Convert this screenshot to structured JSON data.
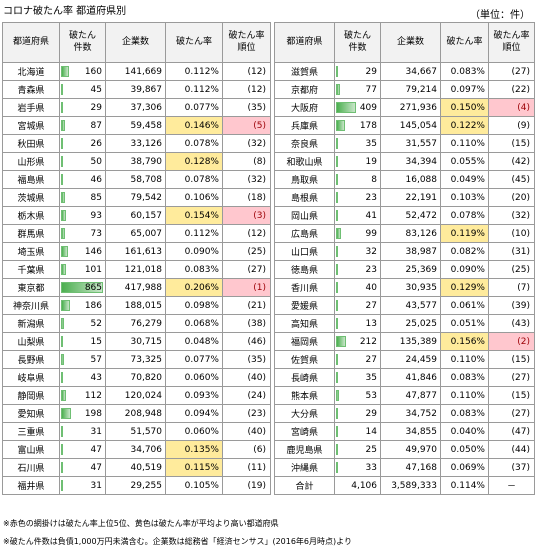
{
  "title": "コロナ破たん率 都道府県別",
  "unit": "（単位：件）",
  "headers": {
    "pref": "都道府県",
    "count_line1": "破たん",
    "count_line2": "件数",
    "companies": "企業数",
    "rate": "破たん率",
    "rank_line1": "破たん率",
    "rank_line2": "順位"
  },
  "max_count": 865,
  "left_rows": [
    {
      "pref": "北海道",
      "count": "160",
      "companies": "141,669",
      "rate": "0.112%",
      "rank": "(12)",
      "hl": ""
    },
    {
      "pref": "青森県",
      "count": "45",
      "companies": "39,867",
      "rate": "0.112%",
      "rank": "(12)",
      "hl": ""
    },
    {
      "pref": "岩手県",
      "count": "29",
      "companies": "37,306",
      "rate": "0.077%",
      "rank": "(35)",
      "hl": ""
    },
    {
      "pref": "宮城県",
      "count": "87",
      "companies": "59,458",
      "rate": "0.146%",
      "rank": "(5)",
      "hl": "top5"
    },
    {
      "pref": "秋田県",
      "count": "26",
      "companies": "33,126",
      "rate": "0.078%",
      "rank": "(32)",
      "hl": ""
    },
    {
      "pref": "山形県",
      "count": "50",
      "companies": "38,790",
      "rate": "0.128%",
      "rank": "(8)",
      "hl": "above"
    },
    {
      "pref": "福島県",
      "count": "46",
      "companies": "58,708",
      "rate": "0.078%",
      "rank": "(32)",
      "hl": ""
    },
    {
      "pref": "茨城県",
      "count": "85",
      "companies": "79,542",
      "rate": "0.106%",
      "rank": "(18)",
      "hl": ""
    },
    {
      "pref": "栃木県",
      "count": "93",
      "companies": "60,157",
      "rate": "0.154%",
      "rank": "(3)",
      "hl": "top5"
    },
    {
      "pref": "群馬県",
      "count": "73",
      "companies": "65,007",
      "rate": "0.112%",
      "rank": "(12)",
      "hl": ""
    },
    {
      "pref": "埼玉県",
      "count": "146",
      "companies": "161,613",
      "rate": "0.090%",
      "rank": "(25)",
      "hl": ""
    },
    {
      "pref": "千葉県",
      "count": "101",
      "companies": "121,018",
      "rate": "0.083%",
      "rank": "(27)",
      "hl": ""
    },
    {
      "pref": "東京都",
      "count": "865",
      "companies": "417,988",
      "rate": "0.206%",
      "rank": "(1)",
      "hl": "top5"
    },
    {
      "pref": "神奈川県",
      "count": "186",
      "companies": "188,015",
      "rate": "0.098%",
      "rank": "(21)",
      "hl": ""
    },
    {
      "pref": "新潟県",
      "count": "52",
      "companies": "76,279",
      "rate": "0.068%",
      "rank": "(38)",
      "hl": ""
    },
    {
      "pref": "山梨県",
      "count": "15",
      "companies": "30,715",
      "rate": "0.048%",
      "rank": "(46)",
      "hl": ""
    },
    {
      "pref": "長野県",
      "count": "57",
      "companies": "73,325",
      "rate": "0.077%",
      "rank": "(35)",
      "hl": ""
    },
    {
      "pref": "岐阜県",
      "count": "43",
      "companies": "70,820",
      "rate": "0.060%",
      "rank": "(40)",
      "hl": ""
    },
    {
      "pref": "静岡県",
      "count": "112",
      "companies": "120,024",
      "rate": "0.093%",
      "rank": "(24)",
      "hl": ""
    },
    {
      "pref": "愛知県",
      "count": "198",
      "companies": "208,948",
      "rate": "0.094%",
      "rank": "(23)",
      "hl": ""
    },
    {
      "pref": "三重県",
      "count": "31",
      "companies": "51,570",
      "rate": "0.060%",
      "rank": "(40)",
      "hl": ""
    },
    {
      "pref": "富山県",
      "count": "47",
      "companies": "34,706",
      "rate": "0.135%",
      "rank": "(6)",
      "hl": "above"
    },
    {
      "pref": "石川県",
      "count": "47",
      "companies": "40,519",
      "rate": "0.115%",
      "rank": "(11)",
      "hl": "above"
    },
    {
      "pref": "福井県",
      "count": "31",
      "companies": "29,255",
      "rate": "0.105%",
      "rank": "(19)",
      "hl": ""
    }
  ],
  "right_rows": [
    {
      "pref": "滋賀県",
      "count": "29",
      "companies": "34,667",
      "rate": "0.083%",
      "rank": "(27)",
      "hl": ""
    },
    {
      "pref": "京都府",
      "count": "77",
      "companies": "79,214",
      "rate": "0.097%",
      "rank": "(22)",
      "hl": ""
    },
    {
      "pref": "大阪府",
      "count": "409",
      "companies": "271,936",
      "rate": "0.150%",
      "rank": "(4)",
      "hl": "top5"
    },
    {
      "pref": "兵庫県",
      "count": "178",
      "companies": "145,054",
      "rate": "0.122%",
      "rank": "(9)",
      "hl": "above"
    },
    {
      "pref": "奈良県",
      "count": "35",
      "companies": "31,557",
      "rate": "0.110%",
      "rank": "(15)",
      "hl": ""
    },
    {
      "pref": "和歌山県",
      "count": "19",
      "companies": "34,394",
      "rate": "0.055%",
      "rank": "(42)",
      "hl": ""
    },
    {
      "pref": "鳥取県",
      "count": "8",
      "companies": "16,088",
      "rate": "0.049%",
      "rank": "(45)",
      "hl": ""
    },
    {
      "pref": "島根県",
      "count": "23",
      "companies": "22,191",
      "rate": "0.103%",
      "rank": "(20)",
      "hl": ""
    },
    {
      "pref": "岡山県",
      "count": "41",
      "companies": "52,472",
      "rate": "0.078%",
      "rank": "(32)",
      "hl": ""
    },
    {
      "pref": "広島県",
      "count": "99",
      "companies": "83,126",
      "rate": "0.119%",
      "rank": "(10)",
      "hl": "above"
    },
    {
      "pref": "山口県",
      "count": "32",
      "companies": "38,987",
      "rate": "0.082%",
      "rank": "(31)",
      "hl": ""
    },
    {
      "pref": "徳島県",
      "count": "23",
      "companies": "25,369",
      "rate": "0.090%",
      "rank": "(25)",
      "hl": ""
    },
    {
      "pref": "香川県",
      "count": "40",
      "companies": "30,935",
      "rate": "0.129%",
      "rank": "(7)",
      "hl": "above"
    },
    {
      "pref": "愛媛県",
      "count": "27",
      "companies": "43,577",
      "rate": "0.061%",
      "rank": "(39)",
      "hl": ""
    },
    {
      "pref": "高知県",
      "count": "13",
      "companies": "25,025",
      "rate": "0.051%",
      "rank": "(43)",
      "hl": ""
    },
    {
      "pref": "福岡県",
      "count": "212",
      "companies": "135,389",
      "rate": "0.156%",
      "rank": "(2)",
      "hl": "top5"
    },
    {
      "pref": "佐賀県",
      "count": "27",
      "companies": "24,459",
      "rate": "0.110%",
      "rank": "(15)",
      "hl": ""
    },
    {
      "pref": "長崎県",
      "count": "35",
      "companies": "41,846",
      "rate": "0.083%",
      "rank": "(27)",
      "hl": ""
    },
    {
      "pref": "熊本県",
      "count": "53",
      "companies": "47,877",
      "rate": "0.110%",
      "rank": "(15)",
      "hl": ""
    },
    {
      "pref": "大分県",
      "count": "29",
      "companies": "34,752",
      "rate": "0.083%",
      "rank": "(27)",
      "hl": ""
    },
    {
      "pref": "宮崎県",
      "count": "14",
      "companies": "34,855",
      "rate": "0.040%",
      "rank": "(47)",
      "hl": ""
    },
    {
      "pref": "鹿児島県",
      "count": "25",
      "companies": "49,970",
      "rate": "0.050%",
      "rank": "(44)",
      "hl": ""
    },
    {
      "pref": "沖縄県",
      "count": "33",
      "companies": "47,168",
      "rate": "0.069%",
      "rank": "(37)",
      "hl": ""
    }
  ],
  "total": {
    "label": "合計",
    "count": "4,106",
    "companies": "3,589,333",
    "rate": "0.114%",
    "rank": "－"
  },
  "notes": [
    "※赤色の網掛けは破たん率上位5位、黄色は破たん率が平均より高い都道府県",
    "※破たん件数は負債1,000万円未満含む。企業数は総務省「経済センサス」(2016年6月時点)より"
  ],
  "colors": {
    "bar": "#4caf50",
    "yellow": "#ffeb9c",
    "pink": "#ffc7ce",
    "pink_text": "#9c0006"
  }
}
